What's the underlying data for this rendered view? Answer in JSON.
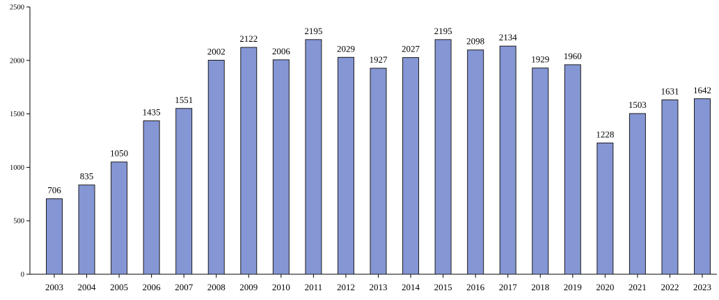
{
  "chart_data": {
    "type": "bar",
    "categories": [
      "2003",
      "2004",
      "2005",
      "2006",
      "2007",
      "2008",
      "2009",
      "2010",
      "2011",
      "2012",
      "2013",
      "2014",
      "2015",
      "2016",
      "2017",
      "2018",
      "2019",
      "2020",
      "2021",
      "2022",
      "2023"
    ],
    "values": [
      706,
      835,
      1050,
      1435,
      1551,
      2002,
      2122,
      2006,
      2195,
      2029,
      1927,
      2027,
      2195,
      2098,
      2134,
      1929,
      1960,
      1228,
      1503,
      1631,
      1642
    ],
    "title": "",
    "xlabel": "",
    "ylabel": "",
    "ylim": [
      0,
      2500
    ],
    "yticks": [
      0,
      500,
      1000,
      1500,
      2000,
      2500
    ],
    "grid": false,
    "legend": "none",
    "data_labels": true
  },
  "colors": {
    "bar_fill": "#8596d5",
    "bar_stroke": "#1a1a1a",
    "axis": "#000000"
  }
}
